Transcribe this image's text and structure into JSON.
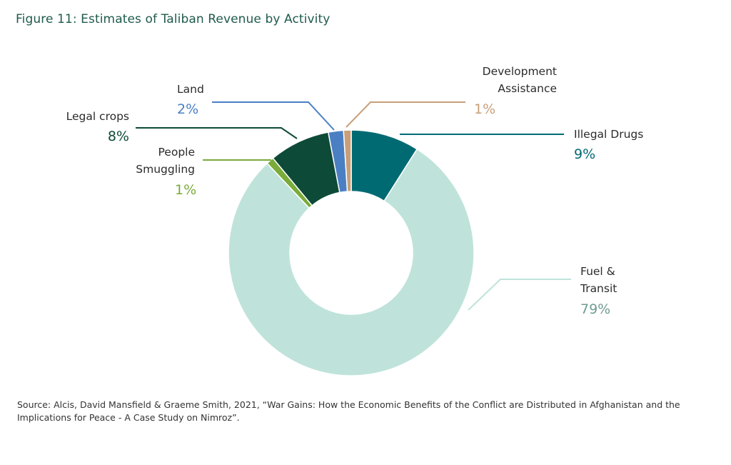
{
  "title": "Figure 11: Estimates of Taliban Revenue by Activity",
  "source": "Source: Alcis, David Mansfield & Graeme Smith, 2021, “War Gains: How the Economic Benefits of the Conflict are Distributed in Afghanistan and the Implications for Peace - A Case Study on Nimroz”.",
  "colors": {
    "illegal_drugs": "#006a73",
    "fuel_transit": "#bfe3da",
    "people_smuggling": "#7aab3b",
    "legal_crops": "#0d4a37",
    "land": "#4b7fc4",
    "development_assistance": "#c89f78"
  },
  "chart_data": {
    "type": "pie",
    "title": "Figure 11: Estimates of Taliban Revenue by Activity",
    "donut": true,
    "slices": [
      {
        "key": "illegal_drugs",
        "label_lines": [
          "Illegal Drugs"
        ],
        "value": 9,
        "value_label": "9%"
      },
      {
        "key": "fuel_transit",
        "label_lines": [
          "Fuel &",
          "Transit"
        ],
        "value": 79,
        "value_label": "79%"
      },
      {
        "key": "people_smuggling",
        "label_lines": [
          "People",
          "Smuggling"
        ],
        "value": 1,
        "value_label": "1%"
      },
      {
        "key": "legal_crops",
        "label_lines": [
          "Legal crops"
        ],
        "value": 8,
        "value_label": "8%"
      },
      {
        "key": "land",
        "label_lines": [
          "Land"
        ],
        "value": 2,
        "value_label": "2%"
      },
      {
        "key": "development_assistance",
        "label_lines": [
          "Development",
          "Assistance"
        ],
        "value": 1,
        "value_label": "1%"
      }
    ]
  }
}
